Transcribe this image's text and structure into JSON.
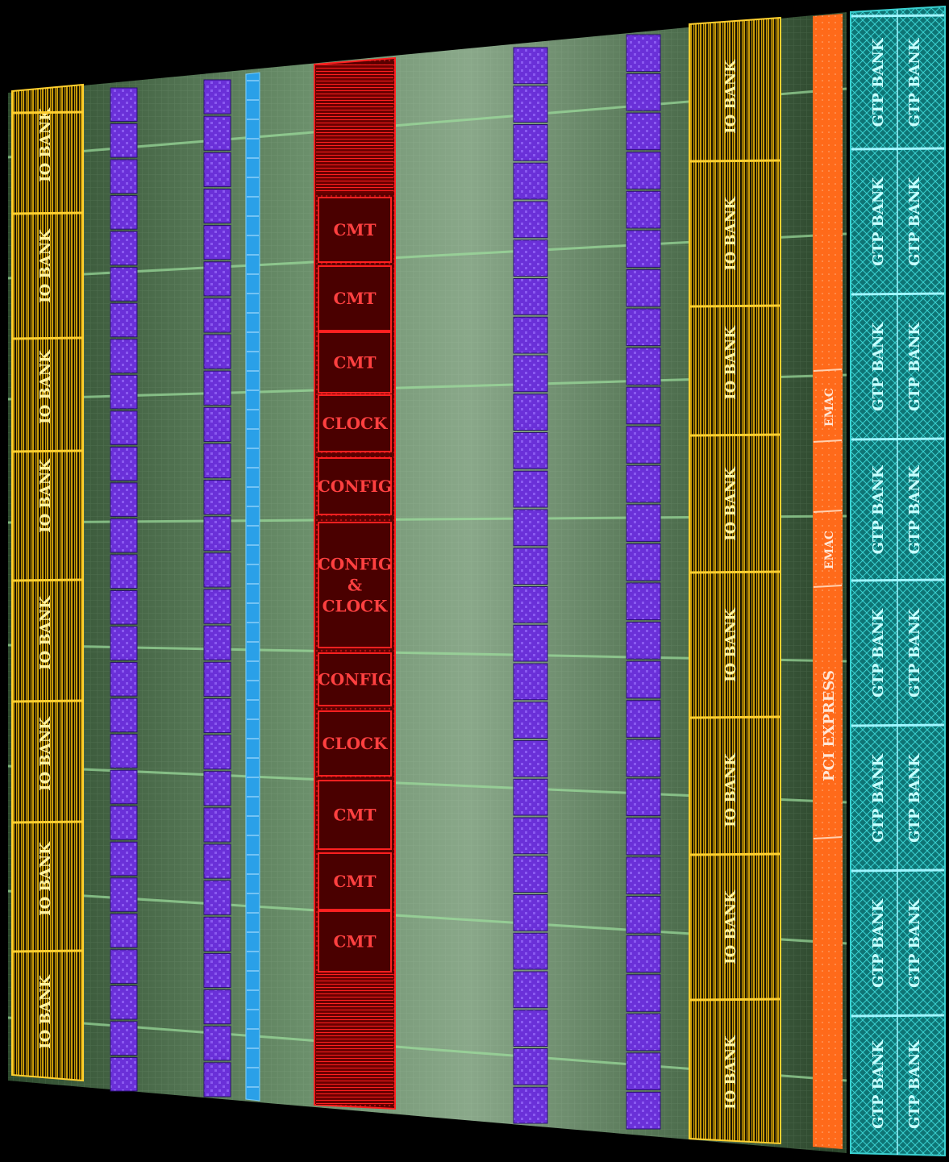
{
  "diagram": {
    "io_bank_label": "IO BANK",
    "gtp_bank_label": "GTP BANK",
    "cmt_label": "CMT",
    "clock_label": "CLOCK",
    "config_label": "CONFIG",
    "config_clock_label": [
      "CONFIG",
      "&",
      "CLOCK"
    ],
    "pci_express_label": "PCI EXPRESS",
    "emac_label": "EMAC",
    "colors": {
      "background": "#000000",
      "fabric": "#4a6e4a",
      "io_bank": "#e0b010",
      "block_ram": "#6a30d8",
      "dsp": "#2aa0e8",
      "center_column": "#c01010",
      "pcie": "#ff6a1a",
      "gtp": "#18a0a0"
    }
  }
}
